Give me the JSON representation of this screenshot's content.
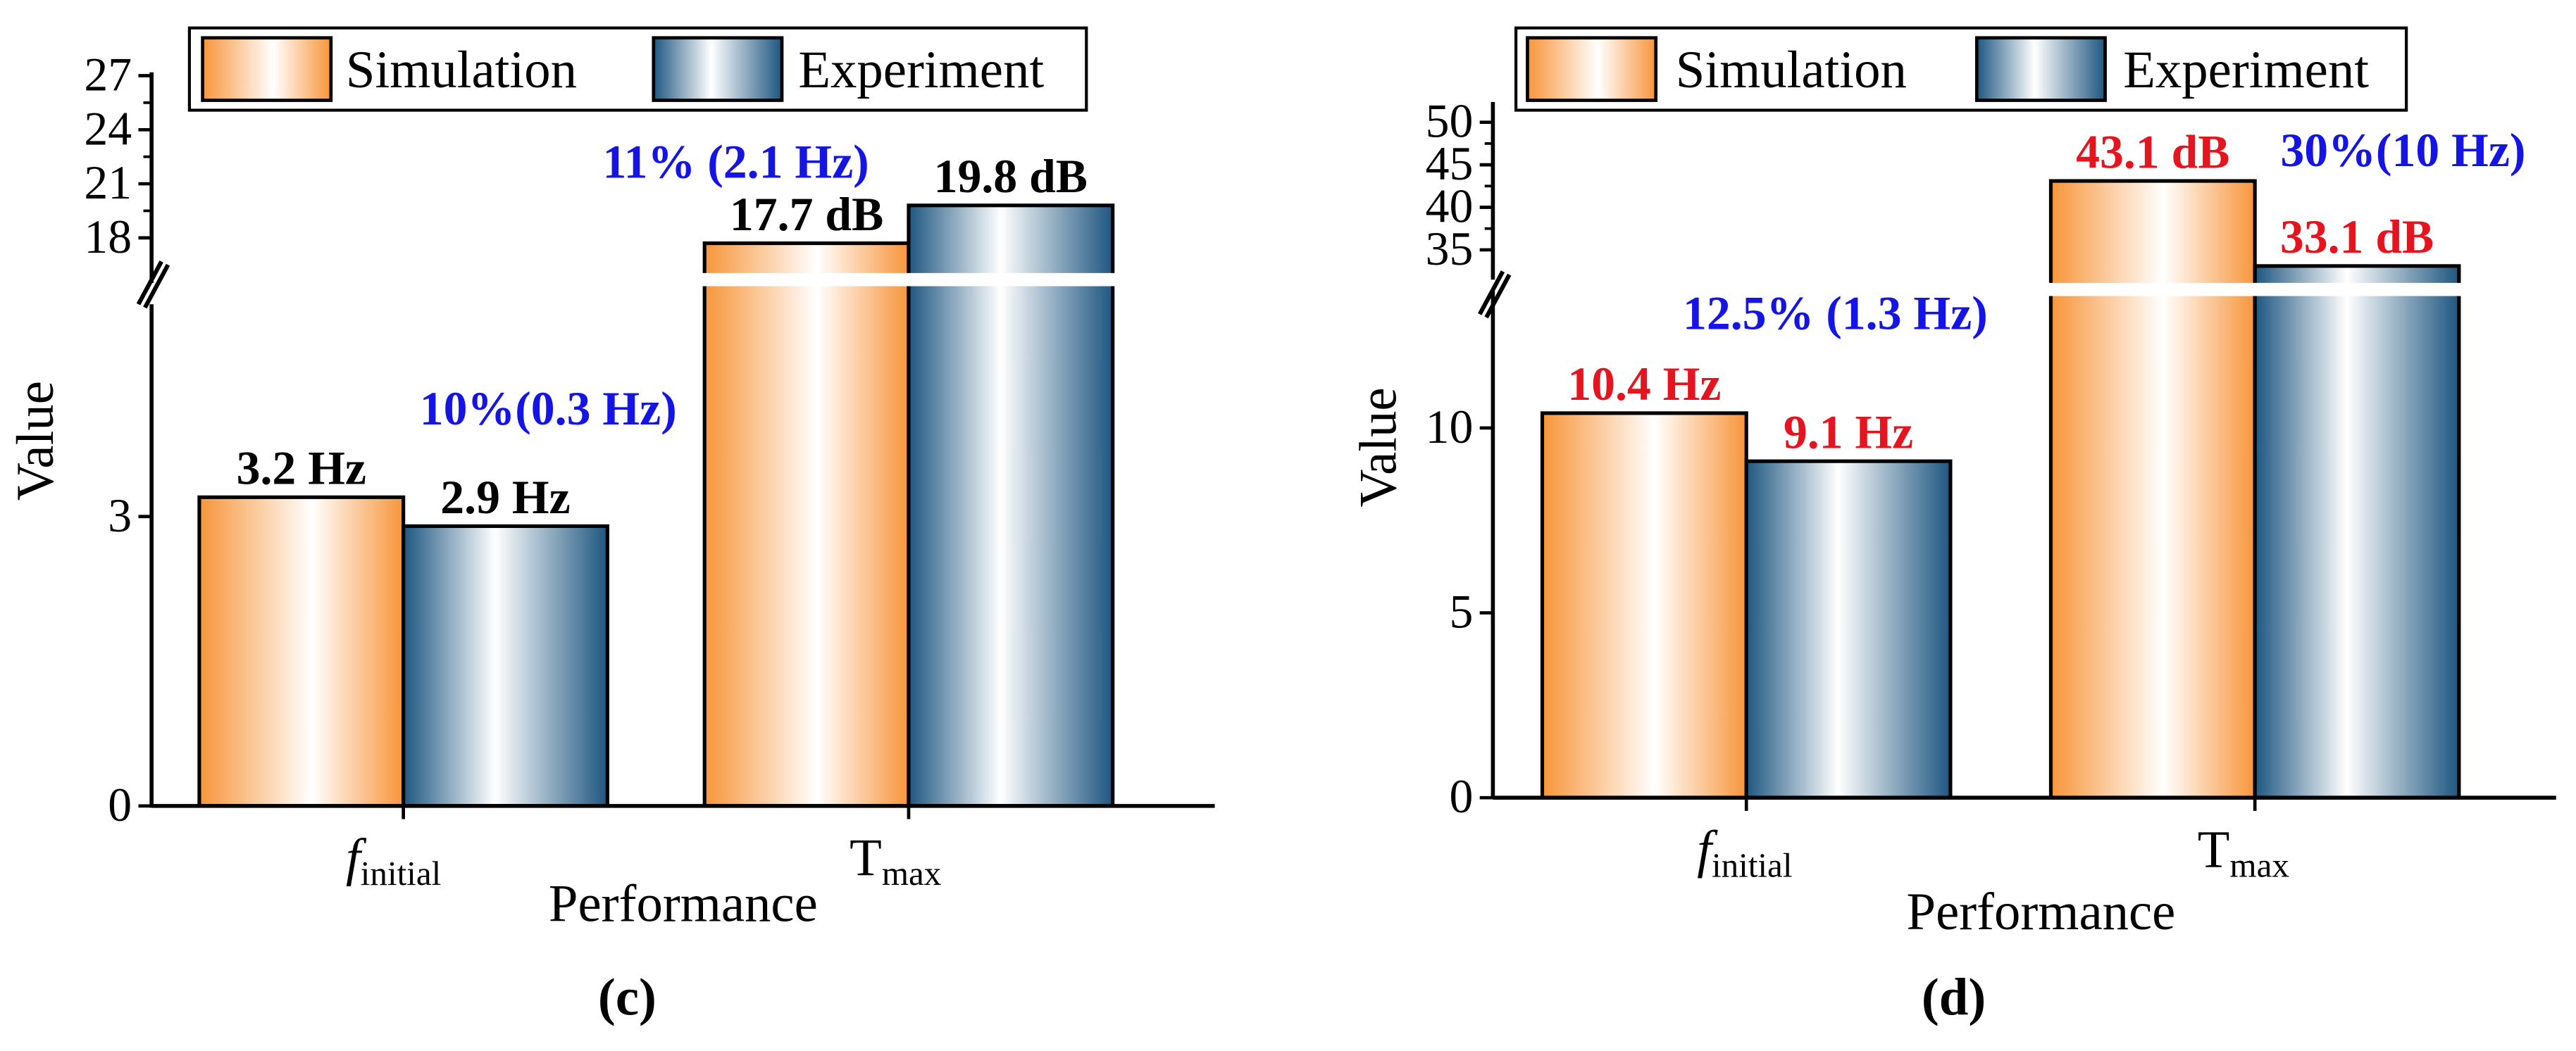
{
  "colors": {
    "simulation_edge": "#f7953a",
    "experiment_edge": "#1e5680",
    "annotation_blue": "#1414e6",
    "annotation_red": "#e6141e",
    "axis": "#000000"
  },
  "chart_data": [
    {
      "panel_label": "(c)",
      "type": "bar",
      "categories": [
        {
          "main": "f",
          "sub": "initial",
          "italic_main": true
        },
        {
          "main": "T",
          "sub": "max",
          "italic_main": false
        }
      ],
      "series": [
        {
          "name": "Simulation",
          "values": [
            3.2,
            17.7
          ]
        },
        {
          "name": "Experiment",
          "values": [
            2.9,
            19.8
          ]
        }
      ],
      "value_labels": [
        [
          "3.2 Hz",
          "17.7 dB"
        ],
        [
          "2.9 Hz",
          "19.8 dB"
        ]
      ],
      "value_label_color": "#000000",
      "difference_labels": [
        "10%(0.3 Hz)",
        "11% (2.1 Hz)"
      ],
      "xlabel": "Performance",
      "ylabel": "Value",
      "broken_axis": true,
      "lower_range": [
        0,
        5.2
      ],
      "upper_range": [
        15.5,
        27
      ],
      "lower_ticks": [
        0,
        3
      ],
      "upper_ticks": [
        18,
        21,
        24,
        27
      ],
      "legend": {
        "position": "top",
        "entries": [
          "Simulation",
          "Experiment"
        ]
      },
      "grid": false
    },
    {
      "panel_label": "(d)",
      "type": "bar",
      "categories": [
        {
          "main": "f",
          "sub": "initial",
          "italic_main": true
        },
        {
          "main": "T",
          "sub": "max",
          "italic_main": false
        }
      ],
      "series": [
        {
          "name": "Simulation",
          "values": [
            10.4,
            43.1
          ]
        },
        {
          "name": "Experiment",
          "values": [
            9.1,
            33.1
          ]
        }
      ],
      "value_labels": [
        [
          "10.4 Hz",
          "43.1 dB"
        ],
        [
          "9.1 Hz",
          "33.1 dB"
        ]
      ],
      "value_label_color": "#e6141e",
      "difference_labels": [
        "12.5% (1.3 Hz)",
        "30%(10 Hz)"
      ],
      "xlabel": "Performance",
      "ylabel": "Value",
      "broken_axis": true,
      "lower_range": [
        0,
        13.7
      ],
      "upper_range": [
        31.5,
        52
      ],
      "lower_ticks": [
        0,
        5,
        10
      ],
      "upper_ticks": [
        35,
        40,
        45,
        50
      ],
      "legend": {
        "position": "top",
        "entries": [
          "Simulation",
          "Experiment"
        ]
      },
      "grid": false
    }
  ]
}
